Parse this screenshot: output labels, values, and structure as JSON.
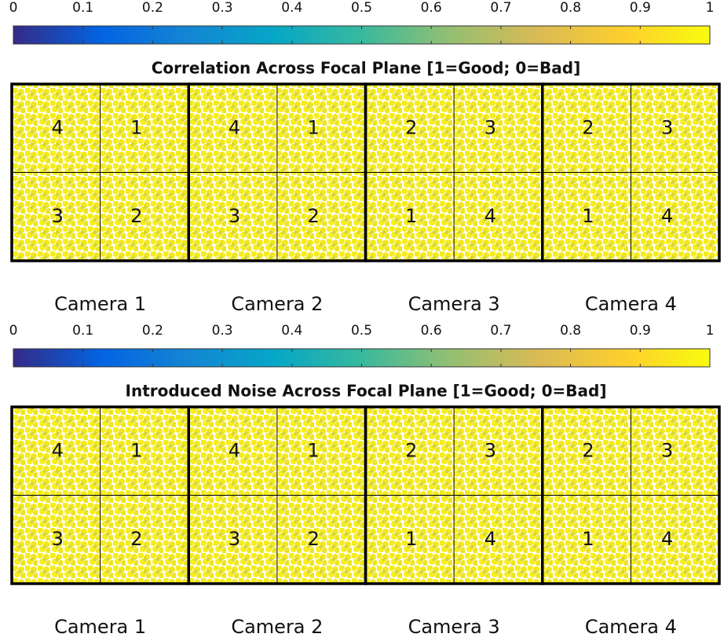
{
  "chart_data": [
    {
      "type": "focal_plane",
      "title": "Correlation Across Focal Plane [1=Good; 0=Bad]",
      "colorbar": {
        "colormap": [
          "#352a87",
          "#0363e1",
          "#1485d4",
          "#06a7c6",
          "#38b99e",
          "#92bf73",
          "#d9ba56",
          "#fcce2e",
          "#f9fb0e"
        ],
        "xlim": [
          0,
          1
        ],
        "xticks": [
          0,
          0.1,
          0.2,
          0.3,
          0.4,
          0.5,
          0.6,
          0.7,
          0.8,
          0.9,
          1
        ]
      },
      "cameras": [
        {
          "name": "Camera 1",
          "ccds": [
            4,
            1,
            3,
            2
          ]
        },
        {
          "name": "Camera 2",
          "ccds": [
            4,
            1,
            3,
            2
          ]
        },
        {
          "name": "Camera 3",
          "ccds": [
            2,
            3,
            1,
            4
          ]
        },
        {
          "name": "Camera 4",
          "ccds": [
            2,
            3,
            1,
            4
          ]
        }
      ]
    },
    {
      "type": "focal_plane",
      "title": "Introduced Noise Across Focal Plane [1=Good; 0=Bad]",
      "colorbar": {
        "colormap": [
          "#352a87",
          "#0363e1",
          "#1485d4",
          "#06a7c6",
          "#38b99e",
          "#92bf73",
          "#d9ba56",
          "#fcce2e",
          "#f9fb0e"
        ],
        "xlim": [
          0,
          1
        ],
        "xticks": [
          0,
          0.1,
          0.2,
          0.3,
          0.4,
          0.5,
          0.6,
          0.7,
          0.8,
          0.9,
          1
        ]
      },
      "cameras": [
        {
          "name": "Camera 1",
          "ccds": [
            4,
            1,
            3,
            2
          ]
        },
        {
          "name": "Camera 2",
          "ccds": [
            4,
            1,
            3,
            2
          ]
        },
        {
          "name": "Camera 3",
          "ccds": [
            2,
            3,
            1,
            4
          ]
        },
        {
          "name": "Camera 4",
          "ccds": [
            2,
            3,
            1,
            4
          ]
        }
      ]
    }
  ]
}
